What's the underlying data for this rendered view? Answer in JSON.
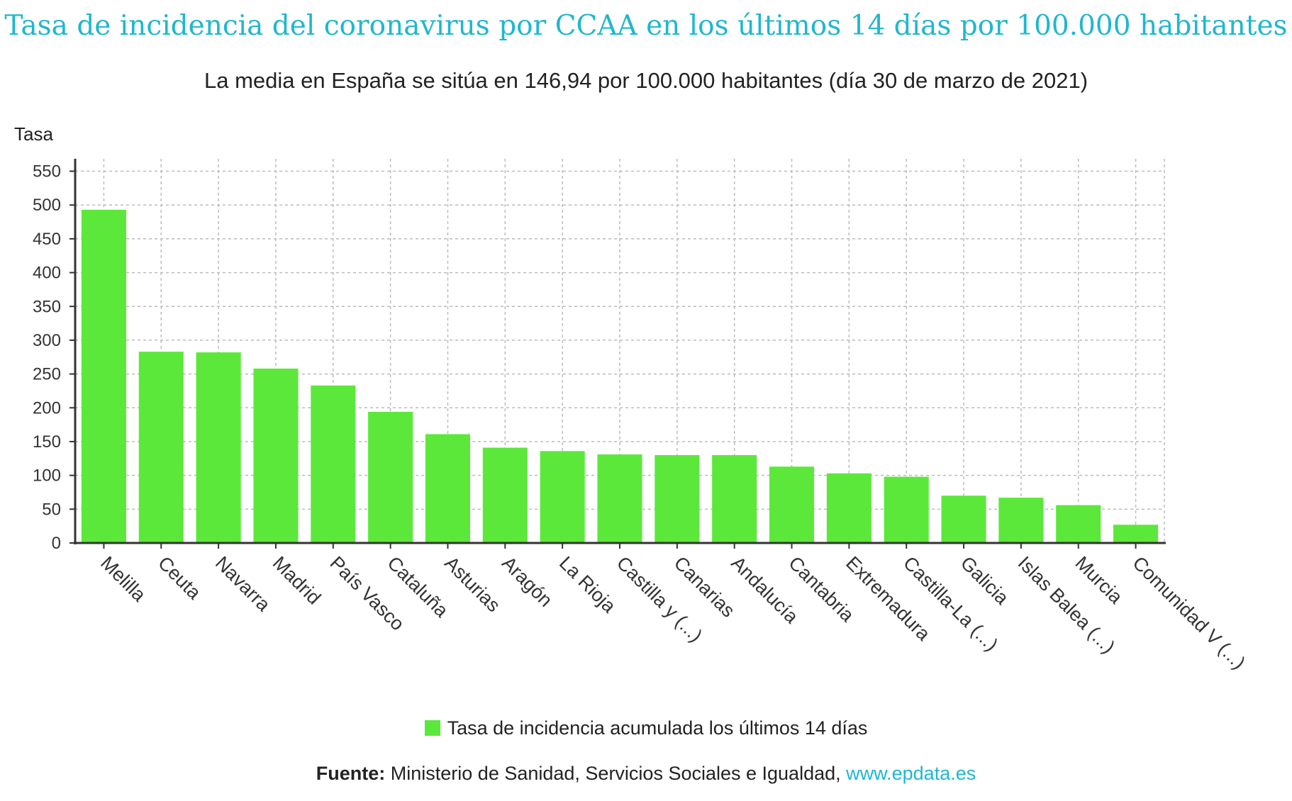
{
  "colors": {
    "bar": "#5ce83a",
    "title": "#1fb7cf",
    "grid": "#bbbbbb",
    "axis": "#333333"
  },
  "chart_data": {
    "type": "bar",
    "title": "Tasa de incidencia del coronavirus por CCAA en los últimos 14 días por 100.000 habitantes",
    "subtitle": "La media en España se sitúa en 146,94 por 100.000 habitantes (día 30 de marzo de 2021)",
    "xlabel": "",
    "ylabel": "Tasa",
    "ylim": [
      0,
      560
    ],
    "yticks": [
      0,
      50,
      100,
      150,
      200,
      250,
      300,
      350,
      400,
      450,
      500,
      550
    ],
    "grid": true,
    "legend_position": "bottom",
    "categories": [
      "Melilla",
      "Ceuta",
      "Navarra",
      "Madrid",
      "País Vasco",
      "Cataluña",
      "Asturias",
      "Aragón",
      "La Rioja",
      "Castilla y (...)",
      "Canarias",
      "Andalucía",
      "Cantabria",
      "Extremadura",
      "Castilla-La (...)",
      "Galicia",
      "Islas Balea (...)",
      "Murcia",
      "Comunidad V (...)"
    ],
    "series": [
      {
        "name": "Tasa de incidencia acumulada los últimos 14 días",
        "values": [
          493,
          283,
          282,
          258,
          233,
          194,
          161,
          141,
          136,
          131,
          130,
          130,
          113,
          103,
          98,
          70,
          67,
          56,
          27
        ]
      }
    ]
  },
  "source": {
    "label": "Fuente:",
    "text": " Ministerio de Sanidad, Servicios Sociales e Igualdad, ",
    "link": "www.epdata.es"
  }
}
